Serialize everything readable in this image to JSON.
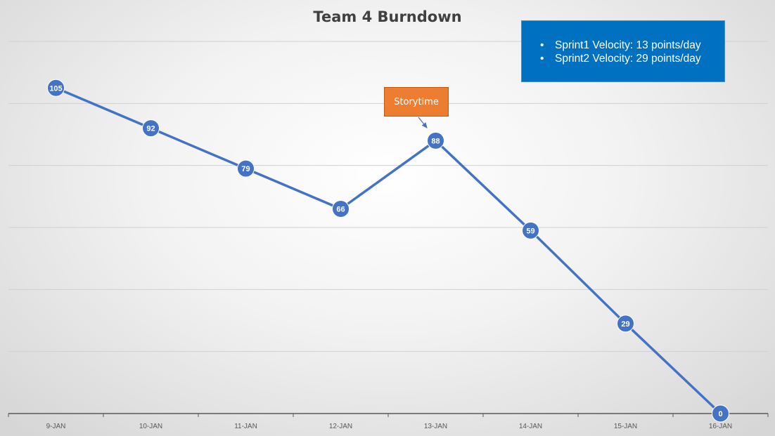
{
  "chart_data": {
    "type": "line",
    "title": "Team 4 Burndown",
    "categories": [
      "9-JAN",
      "10-JAN",
      "11-JAN",
      "12-JAN",
      "13-JAN",
      "14-JAN",
      "15-JAN",
      "16-JAN"
    ],
    "series": [
      {
        "values": [
          105,
          92,
          79,
          66,
          88,
          59,
          29,
          0
        ]
      }
    ],
    "data_labels": true,
    "ylim": [
      0,
      120
    ],
    "y_gridline_step": 20,
    "y_axis_labels_visible": false,
    "grid": true,
    "legend": "none",
    "annotations": {
      "velocity_notes": [
        "Sprint1 Velocity: 13 points/day",
        "Sprint2 Velocity: 29 points/day"
      ],
      "callout": {
        "text": "Storytime",
        "points_to_category": "13-JAN"
      }
    },
    "colors": {
      "series": "#4472c4",
      "gridline": "#d0d0d0",
      "axis": "#595959",
      "callout": "#ed7d31",
      "notes_box": "#0070c0"
    }
  }
}
